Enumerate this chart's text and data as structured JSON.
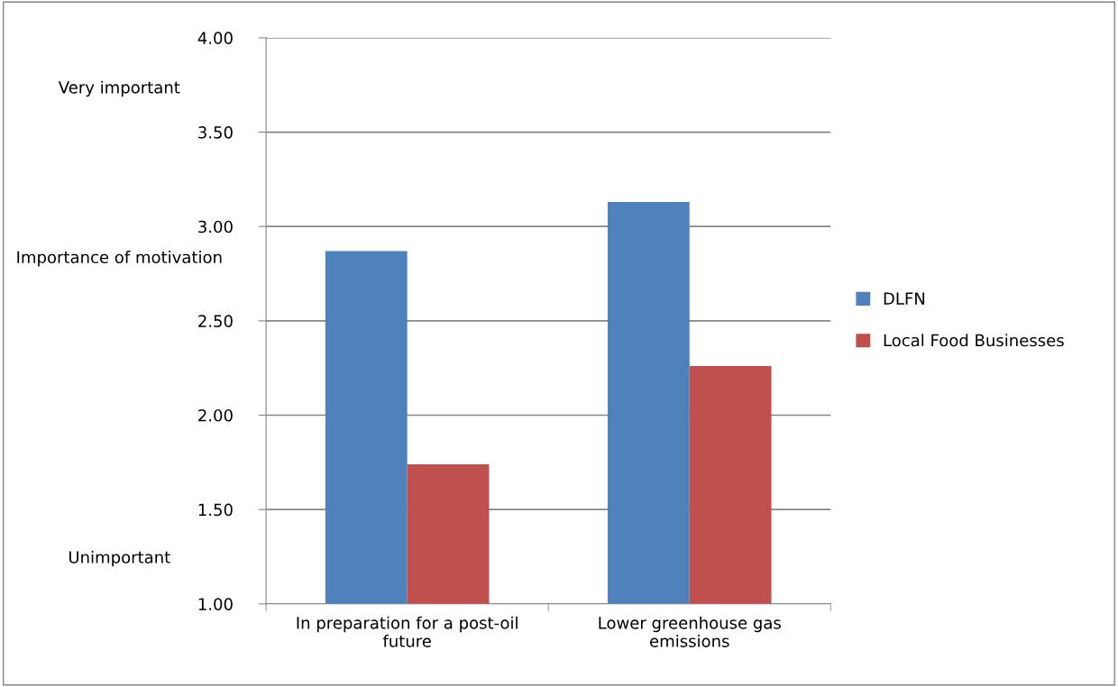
{
  "chart_data": {
    "type": "bar",
    "ylabel": "Importance of motivation",
    "categories": [
      "In preparation for a post-oil\nfuture",
      "Lower greenhouse gas\nemissions"
    ],
    "series": [
      {
        "name": "DLFN",
        "color": "#4f81bd",
        "values": [
          2.87,
          3.13
        ]
      },
      {
        "name": "Local Food Businesses",
        "color": "#c0504d",
        "values": [
          1.74,
          2.26
        ]
      }
    ],
    "ylim": [
      1,
      4
    ],
    "yticks": [
      {
        "value": 1,
        "label": "1.00"
      },
      {
        "value": 1.5,
        "label": "1.50"
      },
      {
        "value": 2,
        "label": "2.00"
      },
      {
        "value": 2.5,
        "label": "2.50"
      },
      {
        "value": 3,
        "label": "3.00"
      },
      {
        "value": 3.5,
        "label": "3.50"
      },
      {
        "value": 4,
        "label": "4.00"
      }
    ],
    "grid": "y",
    "legend": "right",
    "annotations": [
      "Very important",
      "Unimportant"
    ]
  }
}
